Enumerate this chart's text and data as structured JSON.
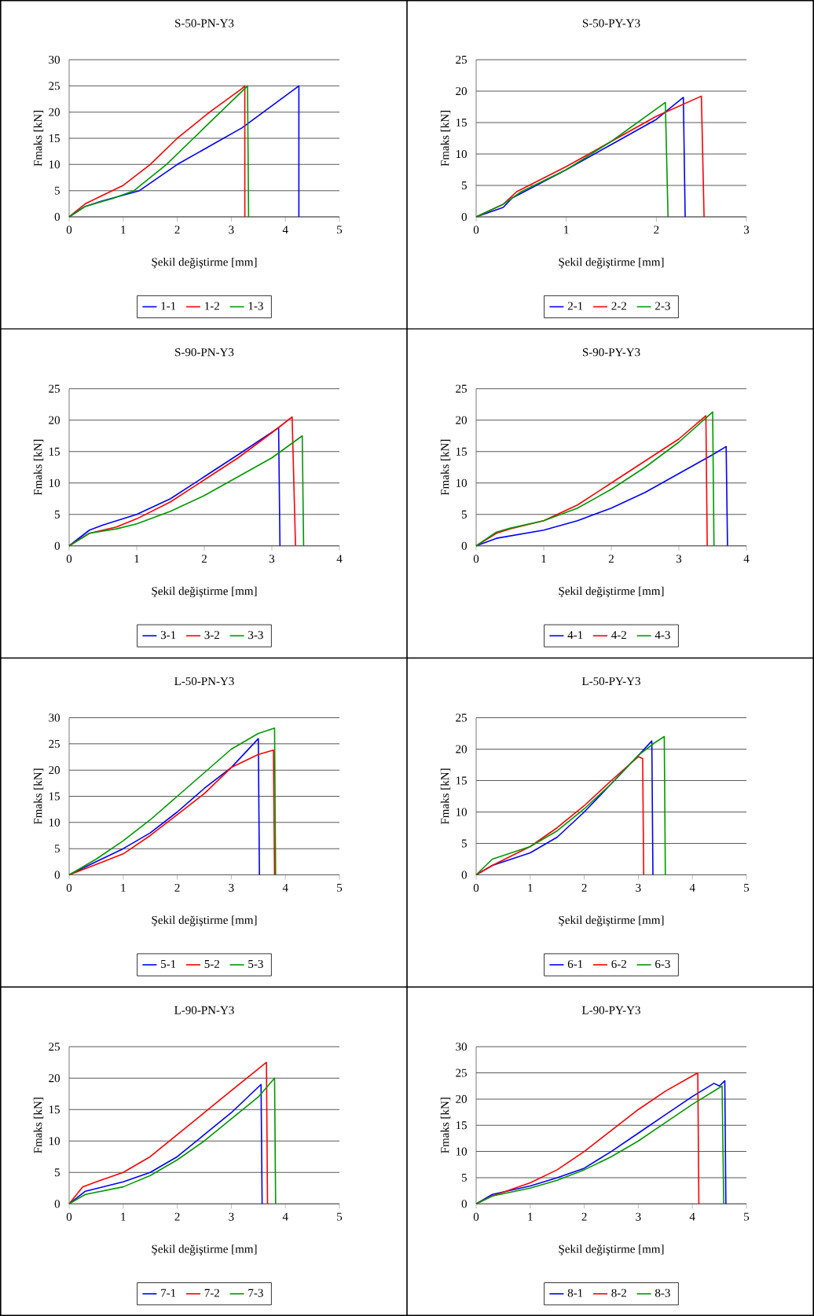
{
  "chart_data": [
    {
      "type": "line",
      "title": "S-50-PN-Y3",
      "xlabel": "Şekil değiştirme [mm]",
      "ylabel": "Fmaks [kN]",
      "xlim": [
        0,
        5
      ],
      "ylim": [
        0,
        30
      ],
      "xticks": [
        0,
        1,
        2,
        3,
        4,
        5
      ],
      "yticks": [
        0,
        5,
        10,
        15,
        20,
        25,
        30
      ],
      "grid": "y",
      "legend": "bottom",
      "marker": "none",
      "line_style": "solid",
      "series": [
        {
          "name": "1-1",
          "color": "#0000ff",
          "x": [
            0,
            0.3,
            0.6,
            1.3,
            2.0,
            3.2,
            4.25,
            4.25
          ],
          "values": [
            0,
            2,
            3,
            5,
            10,
            17,
            25,
            0
          ]
        },
        {
          "name": "1-2",
          "color": "#ff0000",
          "x": [
            0,
            0.3,
            0.6,
            1,
            1.5,
            2,
            2.6,
            3.2,
            3.25,
            3.25
          ],
          "values": [
            0,
            2.5,
            4,
            6,
            10,
            15,
            20,
            24.5,
            25,
            0
          ]
        },
        {
          "name": "1-3",
          "color": "#009900",
          "x": [
            0,
            0.3,
            0.8,
            1.2,
            1.8,
            2.3,
            2.8,
            3.3,
            3.32
          ],
          "values": [
            0,
            2,
            3.5,
            5,
            10,
            15,
            20,
            25,
            0
          ]
        }
      ]
    },
    {
      "type": "line",
      "title": "S-50-PY-Y3",
      "xlabel": "Şekil değiştirme [mm]",
      "ylabel": "Fmaks [kN]",
      "xlim": [
        0,
        3
      ],
      "ylim": [
        0,
        25
      ],
      "xticks": [
        0,
        1,
        2,
        3
      ],
      "yticks": [
        0,
        5,
        10,
        15,
        20,
        25
      ],
      "grid": "y",
      "legend": "bottom",
      "marker": "none",
      "line_style": "solid",
      "series": [
        {
          "name": "2-1",
          "color": "#0000ff",
          "x": [
            0,
            0.3,
            0.4,
            1,
            1.5,
            2,
            2.3,
            2.32
          ],
          "values": [
            0,
            1.5,
            3,
            7.5,
            11.5,
            15.5,
            19,
            0
          ]
        },
        {
          "name": "2-2",
          "color": "#ff0000",
          "x": [
            0,
            0.3,
            0.45,
            1,
            1.5,
            2,
            2.5,
            2.53
          ],
          "values": [
            0,
            2,
            4,
            8,
            12,
            16,
            19.2,
            0
          ]
        },
        {
          "name": "2-3",
          "color": "#009900",
          "x": [
            0,
            0.3,
            0.5,
            1,
            1.5,
            2.1,
            2.13
          ],
          "values": [
            0,
            2,
            4,
            7.5,
            12,
            18.2,
            0
          ]
        }
      ]
    },
    {
      "type": "line",
      "title": "S-90-PN-Y3",
      "xlabel": "Şekil değiştirme [mm]",
      "ylabel": "Fmaks [kN]",
      "xlim": [
        0,
        4
      ],
      "ylim": [
        0,
        25
      ],
      "xticks": [
        0,
        1,
        2,
        3,
        4
      ],
      "yticks": [
        0,
        5,
        10,
        15,
        20,
        25
      ],
      "grid": "y",
      "legend": "bottom",
      "marker": "none",
      "line_style": "solid",
      "series": [
        {
          "name": "3-1",
          "color": "#0000ff",
          "x": [
            0,
            0.3,
            0.5,
            1,
            1.5,
            2,
            2.5,
            3.1,
            3.12
          ],
          "values": [
            0,
            2.5,
            3.3,
            5,
            7.5,
            11,
            14.5,
            18.8,
            0
          ]
        },
        {
          "name": "3-2",
          "color": "#ff0000",
          "x": [
            0,
            0.3,
            0.7,
            1,
            1.5,
            2,
            2.5,
            3,
            3.3,
            3.35
          ],
          "values": [
            0,
            2,
            3,
            4.3,
            7,
            10.5,
            14,
            18,
            20.5,
            0
          ]
        },
        {
          "name": "3-3",
          "color": "#009900",
          "x": [
            0,
            0.3,
            0.7,
            1,
            1.5,
            2,
            2.5,
            3,
            3.45,
            3.47
          ],
          "values": [
            0,
            2,
            2.7,
            3.5,
            5.5,
            8,
            11,
            14,
            17.5,
            0
          ]
        }
      ]
    },
    {
      "type": "line",
      "title": "S-90-PY-Y3",
      "xlabel": "Şekil değiştirme [mm]",
      "ylabel": "Fmaks [kN]",
      "xlim": [
        0,
        4
      ],
      "ylim": [
        0,
        25
      ],
      "xticks": [
        0,
        1,
        2,
        3,
        4
      ],
      "yticks": [
        0,
        5,
        10,
        15,
        20,
        25
      ],
      "grid": "y",
      "legend": "bottom",
      "marker": "none",
      "line_style": "solid",
      "series": [
        {
          "name": "4-1",
          "color": "#0000ff",
          "x": [
            0,
            0.3,
            1,
            1.5,
            2,
            2.5,
            3,
            3.5,
            3.7,
            3.72
          ],
          "values": [
            0,
            1.2,
            2.5,
            4,
            6,
            8.5,
            11.5,
            14.5,
            15.8,
            0
          ]
        },
        {
          "name": "4-2",
          "color": "#ff0000",
          "x": [
            0,
            0.3,
            0.5,
            1,
            1.5,
            2,
            2.5,
            3,
            3.4,
            3.42
          ],
          "values": [
            0,
            2,
            2.7,
            4,
            6.5,
            10,
            13.5,
            17,
            20.7,
            0
          ]
        },
        {
          "name": "4-3",
          "color": "#009900",
          "x": [
            0,
            0.3,
            0.5,
            1,
            1.5,
            2,
            2.5,
            3,
            3.5,
            3.52
          ],
          "values": [
            0,
            2.2,
            2.8,
            4,
            6,
            9,
            12.5,
            16.5,
            21.3,
            0
          ]
        }
      ]
    },
    {
      "type": "line",
      "title": "L-50-PN-Y3",
      "xlabel": "Şekil değiştirme [mm]",
      "ylabel": "Fmaks [kN]",
      "xlim": [
        0,
        5
      ],
      "ylim": [
        0,
        30
      ],
      "xticks": [
        0,
        1,
        2,
        3,
        4,
        5
      ],
      "yticks": [
        0,
        5,
        10,
        15,
        20,
        25,
        30
      ],
      "grid": "y",
      "legend": "bottom",
      "marker": "none",
      "line_style": "solid",
      "series": [
        {
          "name": "5-1",
          "color": "#0000ff",
          "x": [
            0,
            0.5,
            1,
            1.5,
            2,
            2.5,
            3,
            3.5,
            3.52
          ],
          "values": [
            0,
            2.5,
            5,
            8,
            12,
            16.5,
            20.5,
            26,
            0
          ]
        },
        {
          "name": "5-2",
          "color": "#ff0000",
          "x": [
            0,
            0.5,
            1,
            1.5,
            2,
            2.5,
            3,
            3.5,
            3.78,
            3.8
          ],
          "values": [
            0,
            2,
            4,
            7.5,
            11.5,
            15.5,
            20.5,
            23,
            23.8,
            0
          ]
        },
        {
          "name": "5-3",
          "color": "#009900",
          "x": [
            0,
            0.5,
            1,
            1.5,
            2,
            2.5,
            3,
            3.5,
            3.8,
            3.82
          ],
          "values": [
            0,
            3,
            6.5,
            10.5,
            15,
            19.5,
            24,
            27,
            28,
            0
          ]
        }
      ]
    },
    {
      "type": "line",
      "title": "L-50-PY-Y3",
      "xlabel": "Şekil değiştirme [mm]",
      "ylabel": "Fmaks [kN]",
      "xlim": [
        0,
        5
      ],
      "ylim": [
        0,
        25
      ],
      "xticks": [
        0,
        1,
        2,
        3,
        4,
        5
      ],
      "yticks": [
        0,
        5,
        10,
        15,
        20,
        25
      ],
      "grid": "y",
      "legend": "bottom",
      "marker": "none",
      "line_style": "solid",
      "series": [
        {
          "name": "6-1",
          "color": "#0000ff",
          "x": [
            0,
            0.3,
            1,
            1.5,
            2,
            2.5,
            3,
            3.25,
            3.27
          ],
          "values": [
            0,
            1.5,
            3.5,
            6,
            10,
            14.5,
            19,
            21.3,
            0
          ]
        },
        {
          "name": "6-2",
          "color": "#ff0000",
          "x": [
            0,
            0.3,
            1,
            1.5,
            2,
            2.5,
            3,
            3.08,
            3.1
          ],
          "values": [
            0,
            1.5,
            4.5,
            7.5,
            11,
            15,
            18.8,
            18.5,
            0
          ]
        },
        {
          "name": "6-3",
          "color": "#009900",
          "x": [
            0,
            0.3,
            1,
            1.5,
            2,
            2.5,
            3,
            3.3,
            3.48,
            3.5
          ],
          "values": [
            0,
            2.5,
            4.5,
            7,
            10.5,
            14.5,
            19,
            21,
            22,
            0
          ]
        }
      ]
    },
    {
      "type": "line",
      "title": "L-90-PN-Y3",
      "xlabel": "Şekil değiştirme [mm]",
      "ylabel": "Fmaks [kN]",
      "xlim": [
        0,
        5
      ],
      "ylim": [
        0,
        25
      ],
      "xticks": [
        0,
        1,
        2,
        3,
        4,
        5
      ],
      "yticks": [
        0,
        5,
        10,
        15,
        20,
        25
      ],
      "grid": "y",
      "legend": "bottom",
      "marker": "none",
      "line_style": "solid",
      "series": [
        {
          "name": "7-1",
          "color": "#0000ff",
          "x": [
            0,
            0.3,
            1,
            1.5,
            2,
            2.5,
            3,
            3.55,
            3.57
          ],
          "values": [
            0,
            2,
            3.5,
            5,
            7.5,
            11,
            14.5,
            19,
            0
          ]
        },
        {
          "name": "7-2",
          "color": "#ff0000",
          "x": [
            0,
            0.25,
            0.5,
            1,
            1.5,
            2,
            2.5,
            3,
            3.65,
            3.67
          ],
          "values": [
            0,
            2.7,
            3.5,
            5,
            7.5,
            11,
            14.5,
            18,
            22.5,
            0
          ]
        },
        {
          "name": "7-3",
          "color": "#009900",
          "x": [
            0,
            0.3,
            1,
            1.5,
            2,
            2.5,
            3,
            3.5,
            3.8,
            3.82
          ],
          "values": [
            0,
            1.5,
            2.7,
            4.5,
            7,
            10,
            13.5,
            17,
            20,
            0
          ]
        }
      ]
    },
    {
      "type": "line",
      "title": "L-90-PY-Y3",
      "xlabel": "Şekil değiştirme [mm]",
      "ylabel": "Fmaks [kN]",
      "xlim": [
        0,
        5
      ],
      "ylim": [
        0,
        30
      ],
      "xticks": [
        0,
        1,
        2,
        3,
        4,
        5
      ],
      "yticks": [
        0,
        5,
        10,
        15,
        20,
        25,
        30
      ],
      "grid": "y",
      "legend": "bottom",
      "marker": "none",
      "line_style": "solid",
      "series": [
        {
          "name": "8-1",
          "color": "#0000ff",
          "x": [
            0,
            0.3,
            1,
            1.5,
            2,
            2.5,
            3,
            3.5,
            4,
            4.4,
            4.5,
            4.6,
            4.62
          ],
          "values": [
            0,
            1.8,
            3.4,
            5,
            6.8,
            10,
            13.5,
            17,
            20.5,
            23,
            22.5,
            23.5,
            0
          ]
        },
        {
          "name": "8-2",
          "color": "#ff0000",
          "x": [
            0,
            0.3,
            1,
            1.5,
            2,
            2.5,
            3,
            3.5,
            4.1,
            4.12
          ],
          "values": [
            0,
            1.5,
            4,
            6.5,
            10,
            14,
            18,
            21.5,
            25,
            0
          ]
        },
        {
          "name": "8-3",
          "color": "#009900",
          "x": [
            0,
            0.3,
            1,
            1.5,
            2,
            2.5,
            3,
            3.5,
            4,
            4.55,
            4.58
          ],
          "values": [
            0,
            1.5,
            3,
            4.5,
            6.5,
            9,
            12,
            15.5,
            19,
            22.5,
            0
          ]
        }
      ]
    }
  ]
}
